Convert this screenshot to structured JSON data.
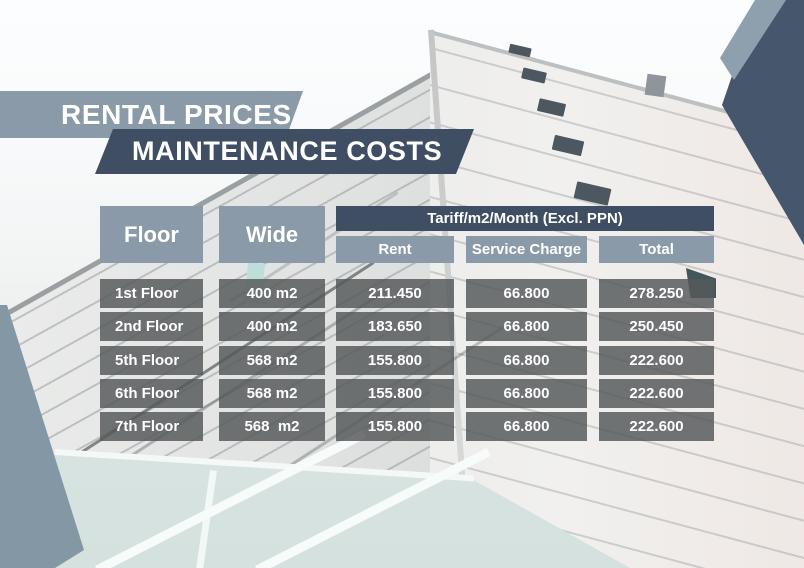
{
  "poster": {
    "title_line1": "RENTAL PRICES",
    "title_line2": "MAINTENANCE COSTS"
  },
  "table": {
    "headers": {
      "floor": "Floor",
      "wide": "Wide",
      "tariff_group": "Tariff/m2/Month (Excl. PPN)",
      "rent": "Rent",
      "service_charge": "Service Charge",
      "total": "Total"
    },
    "rows": [
      {
        "floor": "1st Floor",
        "wide": "400 m2",
        "rent": "211.450",
        "service_charge": "66.800",
        "total": "278.250"
      },
      {
        "floor": "2nd Floor",
        "wide": "400 m2",
        "rent": "183.650",
        "service_charge": "66.800",
        "total": "250.450"
      },
      {
        "floor": "5th Floor",
        "wide": "568 m2",
        "rent": "155.800",
        "service_charge": "66.800",
        "total": "222.600"
      },
      {
        "floor": "6th Floor",
        "wide": "568 m2",
        "rent": "155.800",
        "service_charge": "66.800",
        "total": "222.600"
      },
      {
        "floor": "7th Floor",
        "wide": "568  m2",
        "rent": "155.800",
        "service_charge": "66.800",
        "total": "222.600"
      }
    ]
  },
  "colors": {
    "slate": "#8b9aa8",
    "navy": "#3f4e63",
    "corner_navy": "#46566c",
    "row_gray": "#5a5d5f",
    "text": "#ffffff"
  }
}
